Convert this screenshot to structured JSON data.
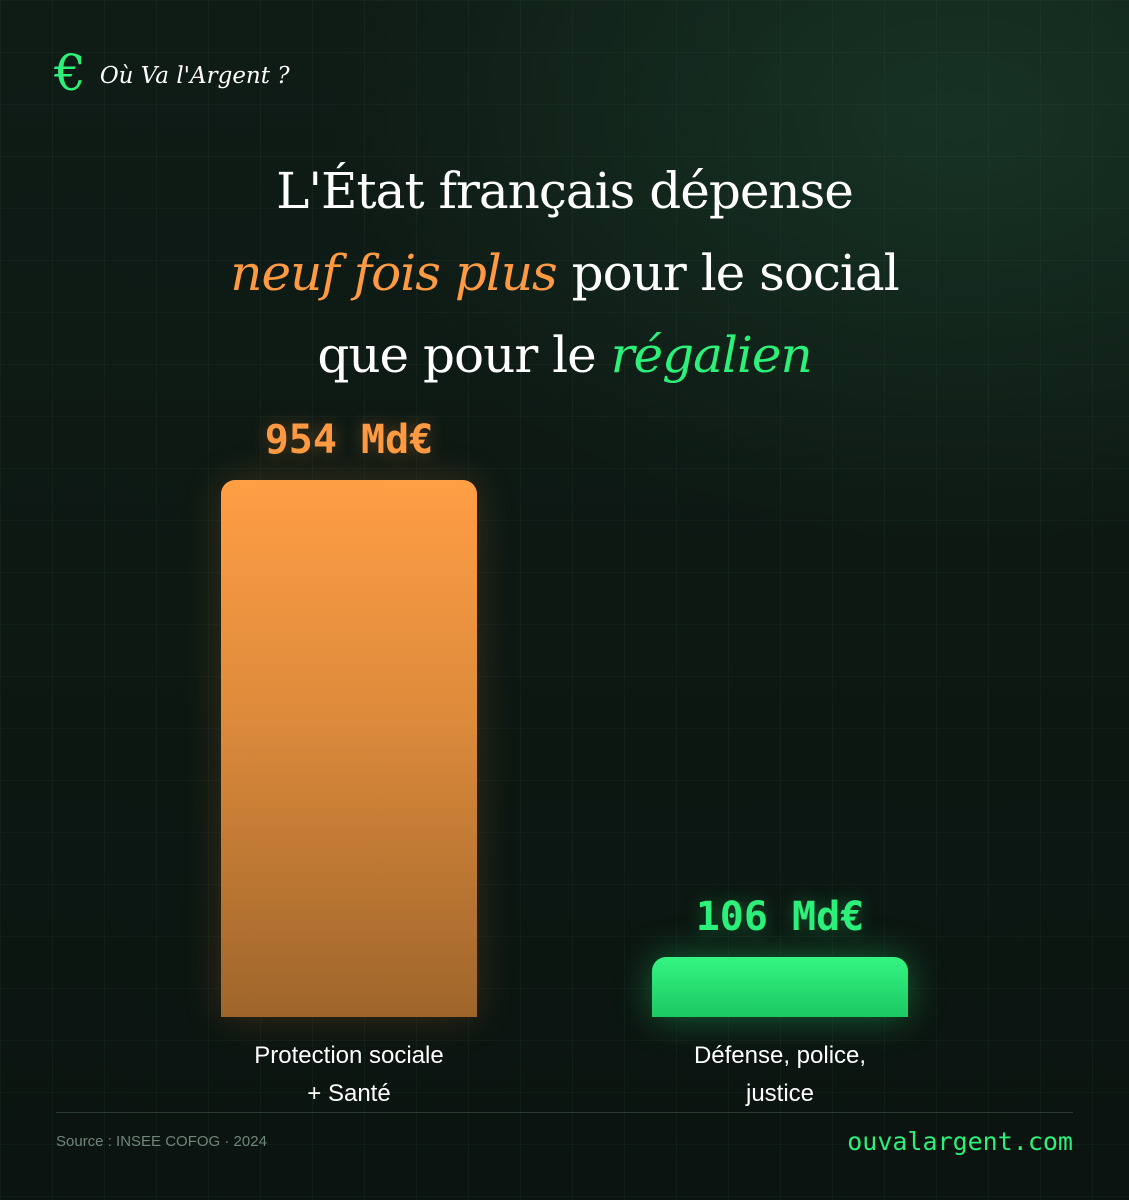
{
  "brand": {
    "icon": "euro-icon",
    "icon_glyph": "€",
    "name": "Où Va l'Argent ?"
  },
  "headline": {
    "line1": "L'État français dépense",
    "line2_highlight": "neuf fois plus",
    "line2_rest": " pour le social",
    "line3_start": "que pour le ",
    "line3_highlight": "régalien"
  },
  "colors": {
    "social": "#ff9a42",
    "regalien": "#2cf07a"
  },
  "chart_data": {
    "type": "bar",
    "unit": "Md€",
    "categories": [
      "Protection sociale + Santé",
      "Défense, police, justice"
    ],
    "category_lines": [
      [
        "Protection sociale",
        "+ Santé"
      ],
      [
        "Défense, police,",
        "justice"
      ]
    ],
    "values": [
      954,
      106
    ],
    "value_labels": [
      "954 Md€",
      "106 Md€"
    ],
    "ylim": [
      0,
      954
    ],
    "grid": false,
    "legend": "none"
  },
  "footer": {
    "source": "Source : INSEE COFOG · 2024",
    "site": "ouvalargent.com"
  }
}
